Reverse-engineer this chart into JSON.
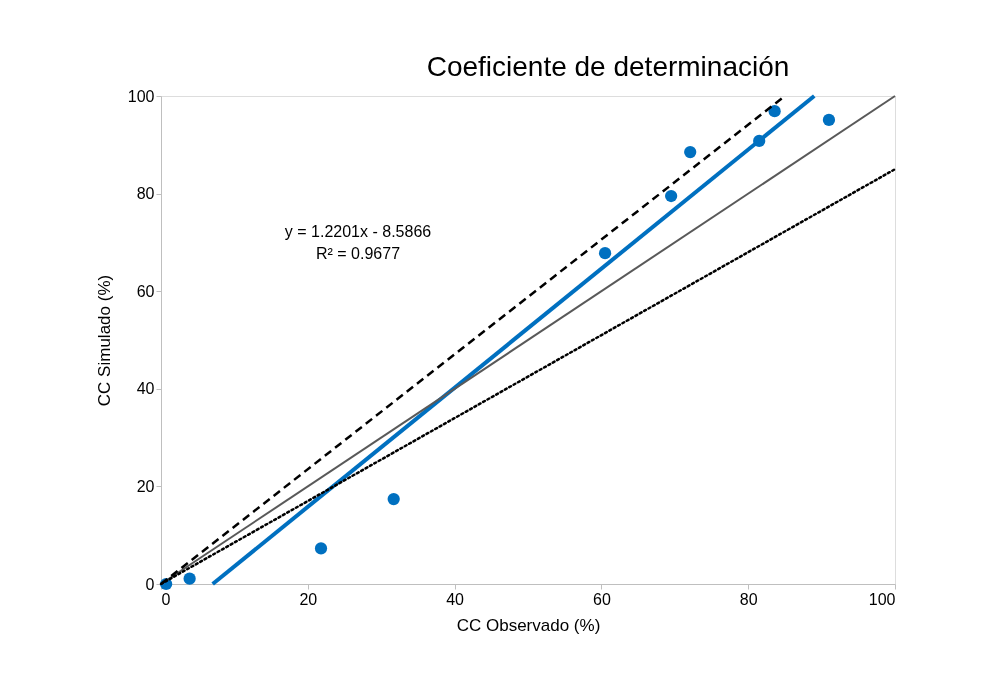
{
  "chart_data": {
    "type": "scatter",
    "title": "Coeficiente de determinación",
    "xlabel": "CC Observado (%)",
    "ylabel": "CC Simulado (%)",
    "xlim": [
      0,
      100
    ],
    "ylim": [
      0,
      100
    ],
    "xticks": [
      0,
      20,
      40,
      60,
      80,
      100
    ],
    "yticks": [
      0,
      20,
      40,
      60,
      80,
      100
    ],
    "grid": false,
    "annotations": [
      "y = 1.2201x - 8.5866",
      "R² = 0.9677"
    ],
    "series": [
      {
        "marker": "circle",
        "color": "#0070c0",
        "x": [
          0.7,
          3.9,
          21.8,
          31.7,
          60.5,
          69.5,
          72.1,
          81.5,
          83.6,
          91.0
        ],
        "values": [
          0,
          1.1,
          7.3,
          17.4,
          67.8,
          79.5,
          88.5,
          90.8,
          96.9,
          95.1
        ]
      },
      {
        "type": "line",
        "line_style": "solid",
        "color": "#0070c0",
        "x": [
          7.04,
          89.0
        ],
        "values": [
          0,
          100
        ]
      },
      {
        "type": "line",
        "line_style": "solid",
        "color": "#595959",
        "x": [
          0,
          100
        ],
        "values": [
          0,
          100
        ]
      },
      {
        "type": "line",
        "line_style": "dashed",
        "color": "#000000",
        "x": [
          0,
          85
        ],
        "values": [
          0,
          100
        ]
      },
      {
        "type": "line",
        "line_style": "dotted",
        "color": "#000000",
        "x": [
          0,
          100
        ],
        "values": [
          0,
          85
        ]
      }
    ]
  }
}
